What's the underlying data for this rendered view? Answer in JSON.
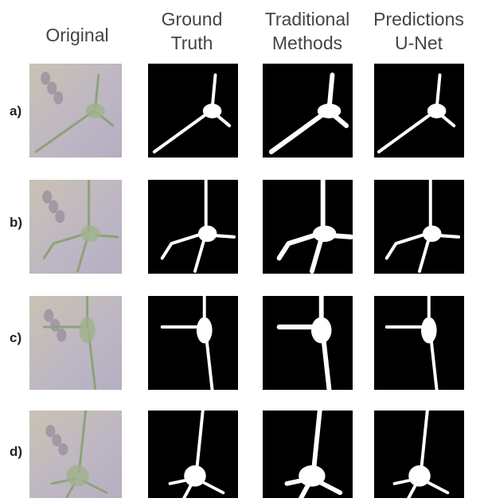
{
  "headers": [
    {
      "lines": [
        "Original"
      ]
    },
    {
      "lines": [
        "Ground",
        "Truth"
      ]
    },
    {
      "lines": [
        "Traditional",
        "Methods"
      ]
    },
    {
      "lines": [
        "Predictions",
        "U-Net"
      ]
    }
  ],
  "rows": [
    {
      "label": "a)"
    },
    {
      "label": "b)"
    },
    {
      "label": "c)"
    },
    {
      "label": "d)"
    }
  ]
}
